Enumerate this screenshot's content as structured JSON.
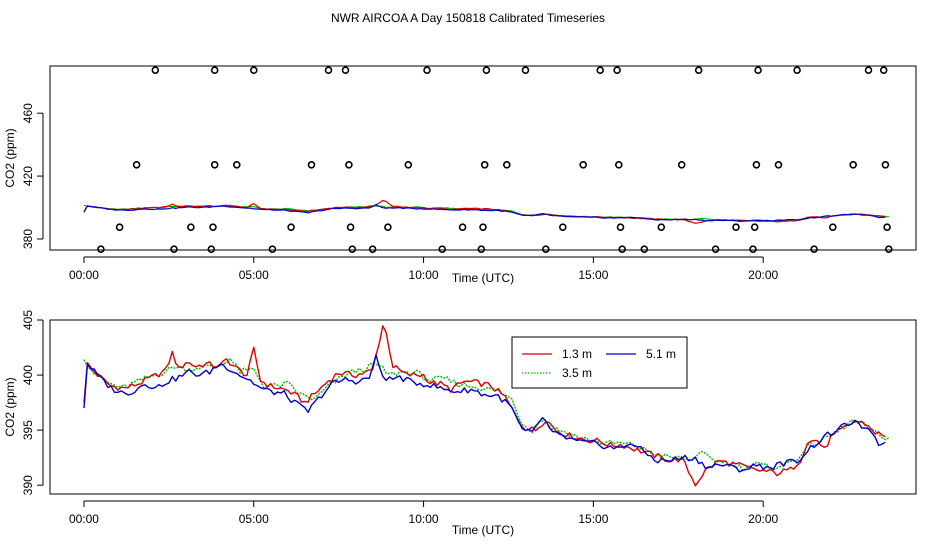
{
  "title": "NWR AIRCOA A  Day 150818  Calibrated Timeseries",
  "colors": {
    "s13": "#dd0000",
    "s35": "#00bb00",
    "s51": "#0000cc",
    "axis": "#000000"
  },
  "chart_data": [
    {
      "type": "scatter+line",
      "xlabel": "Time (UTC)",
      "ylabel": "CO2 (ppm)",
      "xlim": [
        -1.0,
        24.5
      ],
      "ylim": [
        373.0,
        490.0
      ],
      "xticks": [
        0,
        5,
        10,
        15,
        20
      ],
      "xticklabels": [
        "00:00",
        "05:00",
        "10:00",
        "15:00",
        "20:00"
      ],
      "yticks": [
        380,
        420,
        460
      ],
      "yticklabels": [
        "380",
        "420",
        "460"
      ],
      "reference_points": {
        "name": "calibration",
        "x": [
          0.5,
          1.05,
          1.55,
          2.1,
          2.65,
          3.15,
          3.75,
          3.8,
          3.85,
          3.85,
          4.5,
          5.0,
          5.55,
          6.1,
          6.7,
          7.2,
          7.7,
          7.8,
          7.85,
          7.9,
          8.5,
          8.95,
          9.55,
          10.1,
          10.55,
          11.15,
          11.7,
          11.75,
          11.8,
          11.85,
          12.45,
          13.0,
          13.6,
          14.1,
          14.7,
          15.2,
          15.7,
          15.75,
          15.8,
          15.85,
          16.5,
          17.0,
          17.6,
          18.1,
          18.6,
          19.2,
          19.7,
          19.75,
          19.8,
          19.85,
          20.45,
          21.0,
          21.5,
          22.05,
          22.65,
          23.1,
          23.55,
          23.6,
          23.65,
          23.7
        ],
        "y": [
          373.5,
          387.5,
          427.2,
          487.3,
          373.5,
          387.5,
          373.5,
          387.5,
          427.2,
          487.3,
          427.2,
          487.3,
          373.5,
          387.5,
          427.2,
          487.3,
          487.3,
          427.2,
          387.5,
          373.5,
          373.5,
          387.5,
          427.2,
          487.3,
          373.5,
          387.5,
          373.5,
          387.5,
          427.2,
          487.3,
          427.2,
          487.3,
          373.5,
          387.5,
          427.2,
          487.3,
          487.3,
          427.2,
          387.5,
          373.5,
          373.5,
          387.5,
          427.2,
          487.3,
          373.5,
          387.5,
          373.5,
          387.5,
          427.2,
          487.3,
          427.2,
          487.3,
          373.5,
          387.5,
          427.2,
          487.3,
          487.3,
          427.2,
          387.5,
          373.5
        ]
      }
    },
    {
      "type": "line",
      "xlabel": "Time (UTC)",
      "ylabel": "CO2 (ppm)",
      "xlim": [
        -1.0,
        24.5
      ],
      "ylim": [
        389.2,
        405.0
      ],
      "xticks": [
        0,
        5,
        10,
        15,
        20
      ],
      "xticklabels": [
        "00:00",
        "05:00",
        "10:00",
        "15:00",
        "20:00"
      ],
      "yticks": [
        390,
        395,
        400,
        405
      ],
      "yticklabels": [
        "390",
        "395",
        "400",
        "405"
      ],
      "legend": {
        "position": "top-center",
        "entries": [
          "1.3 m",
          "3.5 m",
          "5.1 m"
        ]
      }
    }
  ],
  "series": [
    {
      "key": "s13",
      "name": "1.3 m",
      "anchors": [
        [
          0.0,
          397.5
        ],
        [
          0.1,
          401.0
        ],
        [
          0.4,
          400.0
        ],
        [
          0.8,
          399.0
        ],
        [
          1.2,
          398.8
        ],
        [
          1.6,
          399.2
        ],
        [
          2.0,
          399.8
        ],
        [
          2.4,
          400.4
        ],
        [
          2.6,
          402.0
        ],
        [
          2.8,
          400.5
        ],
        [
          3.0,
          401.2
        ],
        [
          3.3,
          400.8
        ],
        [
          3.6,
          401.0
        ],
        [
          4.0,
          400.8
        ],
        [
          4.2,
          401.4
        ],
        [
          4.5,
          400.6
        ],
        [
          4.8,
          400.0
        ],
        [
          5.0,
          402.3
        ],
        [
          5.2,
          399.5
        ],
        [
          5.5,
          399.0
        ],
        [
          6.0,
          398.6
        ],
        [
          6.3,
          398.0
        ],
        [
          6.5,
          397.5
        ],
        [
          6.8,
          398.3
        ],
        [
          7.2,
          399.5
        ],
        [
          7.5,
          400.2
        ],
        [
          8.0,
          400.0
        ],
        [
          8.5,
          400.4
        ],
        [
          8.8,
          404.5
        ],
        [
          8.9,
          403.8
        ],
        [
          9.1,
          400.8
        ],
        [
          9.5,
          400.0
        ],
        [
          10.0,
          400.0
        ],
        [
          10.2,
          399.3
        ],
        [
          10.5,
          399.2
        ],
        [
          10.8,
          398.7
        ],
        [
          11.2,
          399.4
        ],
        [
          11.6,
          399.3
        ],
        [
          12.0,
          399.0
        ],
        [
          12.4,
          398.0
        ],
        [
          12.8,
          395.8
        ],
        [
          13.0,
          395.2
        ],
        [
          13.3,
          395.0
        ],
        [
          13.6,
          396.0
        ],
        [
          13.9,
          395.0
        ],
        [
          14.3,
          394.5
        ],
        [
          14.8,
          394.1
        ],
        [
          15.2,
          394.0
        ],
        [
          15.5,
          393.6
        ],
        [
          15.8,
          393.7
        ],
        [
          16.1,
          393.4
        ],
        [
          16.5,
          393.0
        ],
        [
          16.9,
          392.6
        ],
        [
          17.3,
          392.2
        ],
        [
          17.6,
          392.4
        ],
        [
          18.0,
          390.1
        ],
        [
          18.3,
          391.3
        ],
        [
          18.7,
          392.2
        ],
        [
          19.0,
          392.0
        ],
        [
          19.3,
          391.8
        ],
        [
          19.7,
          391.4
        ],
        [
          20.0,
          391.3
        ],
        [
          20.4,
          391.1
        ],
        [
          20.8,
          391.4
        ],
        [
          21.1,
          392.3
        ],
        [
          21.3,
          393.9
        ],
        [
          21.6,
          394.1
        ],
        [
          21.8,
          393.2
        ],
        [
          22.0,
          394.4
        ],
        [
          22.4,
          395.2
        ],
        [
          22.7,
          395.8
        ],
        [
          23.0,
          395.6
        ],
        [
          23.3,
          394.8
        ],
        [
          23.6,
          394.4
        ]
      ]
    },
    {
      "key": "s35",
      "name": "3.5 m",
      "anchors": [
        [
          0.0,
          401.4
        ],
        [
          0.3,
          400.2
        ],
        [
          0.7,
          399.3
        ],
        [
          1.1,
          398.8
        ],
        [
          1.5,
          399.3
        ],
        [
          1.9,
          399.8
        ],
        [
          2.3,
          400.2
        ],
        [
          2.7,
          400.8
        ],
        [
          3.1,
          400.5
        ],
        [
          3.5,
          400.8
        ],
        [
          3.9,
          400.7
        ],
        [
          4.3,
          401.5
        ],
        [
          4.6,
          400.3
        ],
        [
          5.0,
          400.5
        ],
        [
          5.3,
          399.0
        ],
        [
          5.7,
          399.0
        ],
        [
          6.0,
          399.2
        ],
        [
          6.4,
          398.2
        ],
        [
          6.8,
          397.8
        ],
        [
          7.2,
          399.0
        ],
        [
          7.5,
          399.6
        ],
        [
          7.8,
          400.2
        ],
        [
          8.2,
          400.5
        ],
        [
          8.6,
          401.0
        ],
        [
          9.0,
          400.0
        ],
        [
          9.4,
          400.3
        ],
        [
          9.8,
          400.2
        ],
        [
          10.2,
          399.5
        ],
        [
          10.6,
          399.7
        ],
        [
          11.0,
          399.2
        ],
        [
          11.4,
          399.0
        ],
        [
          11.8,
          398.8
        ],
        [
          12.2,
          398.5
        ],
        [
          12.6,
          397.8
        ],
        [
          12.9,
          395.6
        ],
        [
          13.2,
          395.0
        ],
        [
          13.5,
          396.0
        ],
        [
          13.8,
          395.2
        ],
        [
          14.2,
          394.8
        ],
        [
          14.6,
          394.3
        ],
        [
          15.0,
          394.0
        ],
        [
          15.4,
          393.8
        ],
        [
          15.8,
          393.8
        ],
        [
          16.2,
          393.6
        ],
        [
          16.6,
          393.1
        ],
        [
          17.0,
          392.6
        ],
        [
          17.4,
          392.5
        ],
        [
          17.8,
          392.3
        ],
        [
          18.2,
          392.8
        ],
        [
          18.6,
          392.3
        ],
        [
          19.0,
          392.0
        ],
        [
          19.4,
          391.6
        ],
        [
          19.8,
          391.9
        ],
        [
          20.2,
          391.6
        ],
        [
          20.6,
          391.8
        ],
        [
          21.0,
          392.5
        ],
        [
          21.4,
          393.6
        ],
        [
          21.8,
          394.2
        ],
        [
          22.2,
          394.9
        ],
        [
          22.6,
          395.8
        ],
        [
          23.0,
          395.4
        ],
        [
          23.4,
          394.5
        ],
        [
          23.7,
          394.3
        ]
      ]
    },
    {
      "key": "s51",
      "name": "5.1 m",
      "anchors": [
        [
          0.0,
          397.0
        ],
        [
          0.1,
          401.0
        ],
        [
          0.4,
          400.0
        ],
        [
          0.8,
          398.8
        ],
        [
          1.2,
          398.3
        ],
        [
          1.5,
          398.6
        ],
        [
          1.8,
          399.3
        ],
        [
          2.1,
          398.8
        ],
        [
          2.5,
          399.5
        ],
        [
          2.8,
          399.8
        ],
        [
          3.1,
          400.3
        ],
        [
          3.4,
          400.0
        ],
        [
          3.7,
          400.3
        ],
        [
          4.0,
          401.0
        ],
        [
          4.3,
          400.6
        ],
        [
          4.6,
          400.0
        ],
        [
          4.9,
          399.5
        ],
        [
          5.2,
          398.8
        ],
        [
          5.5,
          398.5
        ],
        [
          5.9,
          398.3
        ],
        [
          6.2,
          397.5
        ],
        [
          6.6,
          396.7
        ],
        [
          7.0,
          398.2
        ],
        [
          7.3,
          399.2
        ],
        [
          7.7,
          399.6
        ],
        [
          8.1,
          399.4
        ],
        [
          8.4,
          399.8
        ],
        [
          8.6,
          401.6
        ],
        [
          8.8,
          399.9
        ],
        [
          9.0,
          399.6
        ],
        [
          9.3,
          399.8
        ],
        [
          9.6,
          399.4
        ],
        [
          10.0,
          399.2
        ],
        [
          10.3,
          399.0
        ],
        [
          10.6,
          398.7
        ],
        [
          11.0,
          398.5
        ],
        [
          11.4,
          398.7
        ],
        [
          11.8,
          398.2
        ],
        [
          12.2,
          398.1
        ],
        [
          12.6,
          397.0
        ],
        [
          12.9,
          395.0
        ],
        [
          13.2,
          394.7
        ],
        [
          13.5,
          396.2
        ],
        [
          13.8,
          394.7
        ],
        [
          14.2,
          394.3
        ],
        [
          14.6,
          393.9
        ],
        [
          15.0,
          393.8
        ],
        [
          15.4,
          393.5
        ],
        [
          15.8,
          393.3
        ],
        [
          16.1,
          393.9
        ],
        [
          16.5,
          393.0
        ],
        [
          16.9,
          392.2
        ],
        [
          17.3,
          392.3
        ],
        [
          17.7,
          392.5
        ],
        [
          18.0,
          392.4
        ],
        [
          18.4,
          391.6
        ],
        [
          18.7,
          391.9
        ],
        [
          19.1,
          391.6
        ],
        [
          19.4,
          391.4
        ],
        [
          19.8,
          391.8
        ],
        [
          20.2,
          391.6
        ],
        [
          20.6,
          392.0
        ],
        [
          21.0,
          392.2
        ],
        [
          21.4,
          393.4
        ],
        [
          21.8,
          394.4
        ],
        [
          22.2,
          395.0
        ],
        [
          22.6,
          395.8
        ],
        [
          23.0,
          395.2
        ],
        [
          23.4,
          393.8
        ],
        [
          23.6,
          393.9
        ]
      ]
    }
  ]
}
